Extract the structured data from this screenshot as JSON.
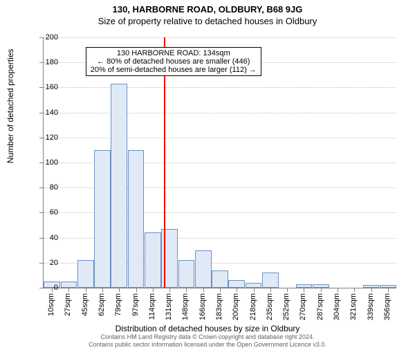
{
  "title": "130, HARBORNE ROAD, OLDBURY, B68 9JG",
  "subtitle": "Size of property relative to detached houses in Oldbury",
  "ylabel": "Number of detached properties",
  "xlabel": "Distribution of detached houses by size in Oldbury",
  "chart": {
    "type": "histogram",
    "ylim": [
      0,
      200
    ],
    "ytick_step": 20,
    "yticks": [
      0,
      20,
      40,
      60,
      80,
      100,
      120,
      140,
      160,
      180,
      200
    ],
    "xticks": [
      "10sqm",
      "27sqm",
      "45sqm",
      "62sqm",
      "79sqm",
      "97sqm",
      "114sqm",
      "131sqm",
      "148sqm",
      "166sqm",
      "183sqm",
      "200sqm",
      "218sqm",
      "235sqm",
      "252sqm",
      "270sqm",
      "287sqm",
      "304sqm",
      "321sqm",
      "339sqm",
      "356sqm"
    ],
    "bars": [
      5,
      5,
      22,
      110,
      163,
      110,
      44,
      47,
      22,
      30,
      14,
      6,
      4,
      12,
      0,
      3,
      3,
      0,
      0,
      2,
      2
    ],
    "bar_fill": "#e0eaf6",
    "bar_border": "#6a8fc4",
    "grid_color": "#c0c0c0",
    "axis_color": "#808080",
    "background_color": "#ffffff",
    "marker": {
      "position_index": 7.15,
      "color": "#ff0000"
    },
    "annotation": {
      "lines": [
        "130 HARBORNE ROAD: 134sqm",
        "← 80% of detached houses are smaller (446)",
        "20% of semi-detached houses are larger (112) →"
      ],
      "x_index_left": 2.5,
      "y_value": 192
    }
  },
  "footer": {
    "line1": "Contains HM Land Registry data © Crown copyright and database right 2024.",
    "line2": "Contains public sector information licensed under the Open Government Licence v3.0."
  }
}
